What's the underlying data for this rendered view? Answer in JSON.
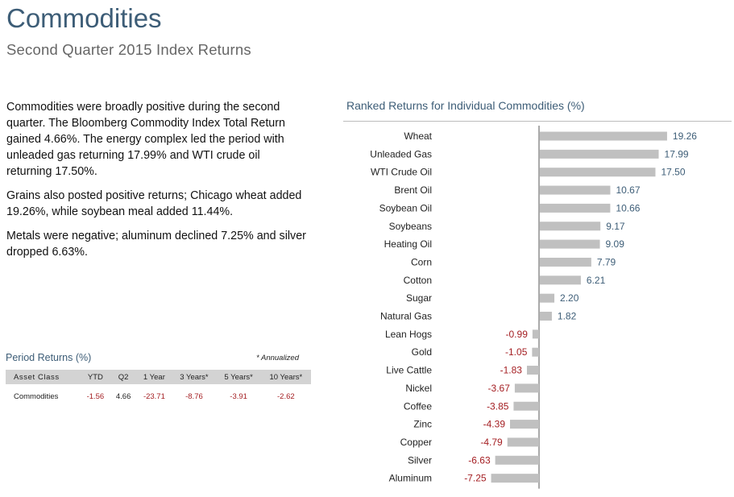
{
  "header": {
    "title": "Commodities",
    "subtitle": "Second Quarter 2015 Index Returns"
  },
  "commentary": {
    "p1": "Commodities were broadly positive during the second quarter. The Bloomberg Commodity Index Total Return gained 4.66%. The energy complex led the period with unleaded gas returning 17.99% and WTI crude oil returning 17.50%.",
    "p2": "Grains also posted positive returns; Chicago wheat added 19.26%, while soybean meal added 11.44%.",
    "p3": "Metals were negative; aluminum declined 7.25% and silver dropped 6.63%."
  },
  "period_returns": {
    "title": "Period Returns (%)",
    "annotation": "* Annualized",
    "headers": [
      "Asset Class",
      "YTD",
      "Q2",
      "1 Year",
      "3 Years*",
      "5 Years*",
      "10 Years*"
    ],
    "row": {
      "asset": "Commodities",
      "ytd": "-1.56",
      "q2": "4.66",
      "y1": "-23.71",
      "y3": "-8.76",
      "y5": "-3.91",
      "y10": "-2.62"
    }
  },
  "colors": {
    "positive_label": "#3d5d77",
    "negative_label": "#a41e22",
    "bar": "#c0c0c0"
  },
  "chart_data": {
    "type": "bar",
    "orientation": "horizontal",
    "title": "Ranked Returns for Individual  Commodities (%)",
    "categories": [
      "Wheat",
      "Unleaded Gas",
      "WTI Crude Oil",
      "Brent Oil",
      "Soybean Oil",
      "Soybeans",
      "Heating Oil",
      "Corn",
      "Cotton",
      "Sugar",
      "Natural Gas",
      "Lean Hogs",
      "Gold",
      "Live Cattle",
      "Nickel",
      "Coffee",
      "Zinc",
      "Copper",
      "Silver",
      "Aluminum"
    ],
    "values": [
      19.26,
      17.99,
      17.5,
      10.67,
      10.66,
      9.17,
      9.09,
      7.79,
      6.21,
      2.2,
      1.82,
      -0.99,
      -1.05,
      -1.83,
      -3.67,
      -3.85,
      -4.39,
      -4.79,
      -6.63,
      -7.25
    ],
    "value_labels": [
      "19.26",
      "17.99",
      "17.50",
      "10.67",
      "10.66",
      "9.17",
      "9.09",
      "7.79",
      "6.21",
      "2.20",
      "1.82",
      "-0.99",
      "-1.05",
      "-1.83",
      "-3.67",
      "-3.85",
      "-4.39",
      "-4.79",
      "-6.63",
      "-7.25"
    ],
    "xlabel": "",
    "ylabel": "",
    "grid": false,
    "legend": "none"
  }
}
